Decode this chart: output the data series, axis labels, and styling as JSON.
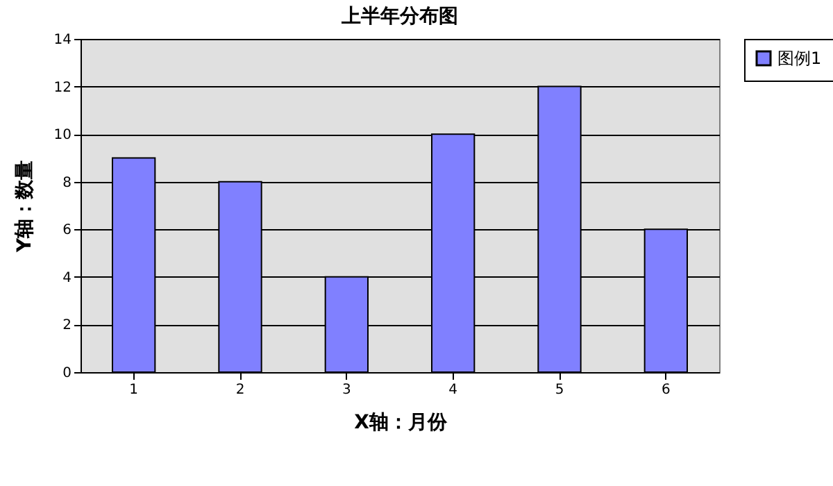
{
  "chart_data": {
    "type": "bar",
    "title": "上半年分布图",
    "xlabel": "X轴：月份",
    "ylabel": "Y轴：数量",
    "categories": [
      "1",
      "2",
      "3",
      "4",
      "5",
      "6"
    ],
    "series": [
      {
        "name": "图例1",
        "color": "#8080ff",
        "values": [
          9,
          8,
          4,
          10,
          12,
          6
        ]
      }
    ],
    "ylim": [
      0,
      14
    ],
    "yticks": [
      0,
      2,
      4,
      6,
      8,
      10,
      12,
      14
    ],
    "grid": "y",
    "legend": "right"
  }
}
